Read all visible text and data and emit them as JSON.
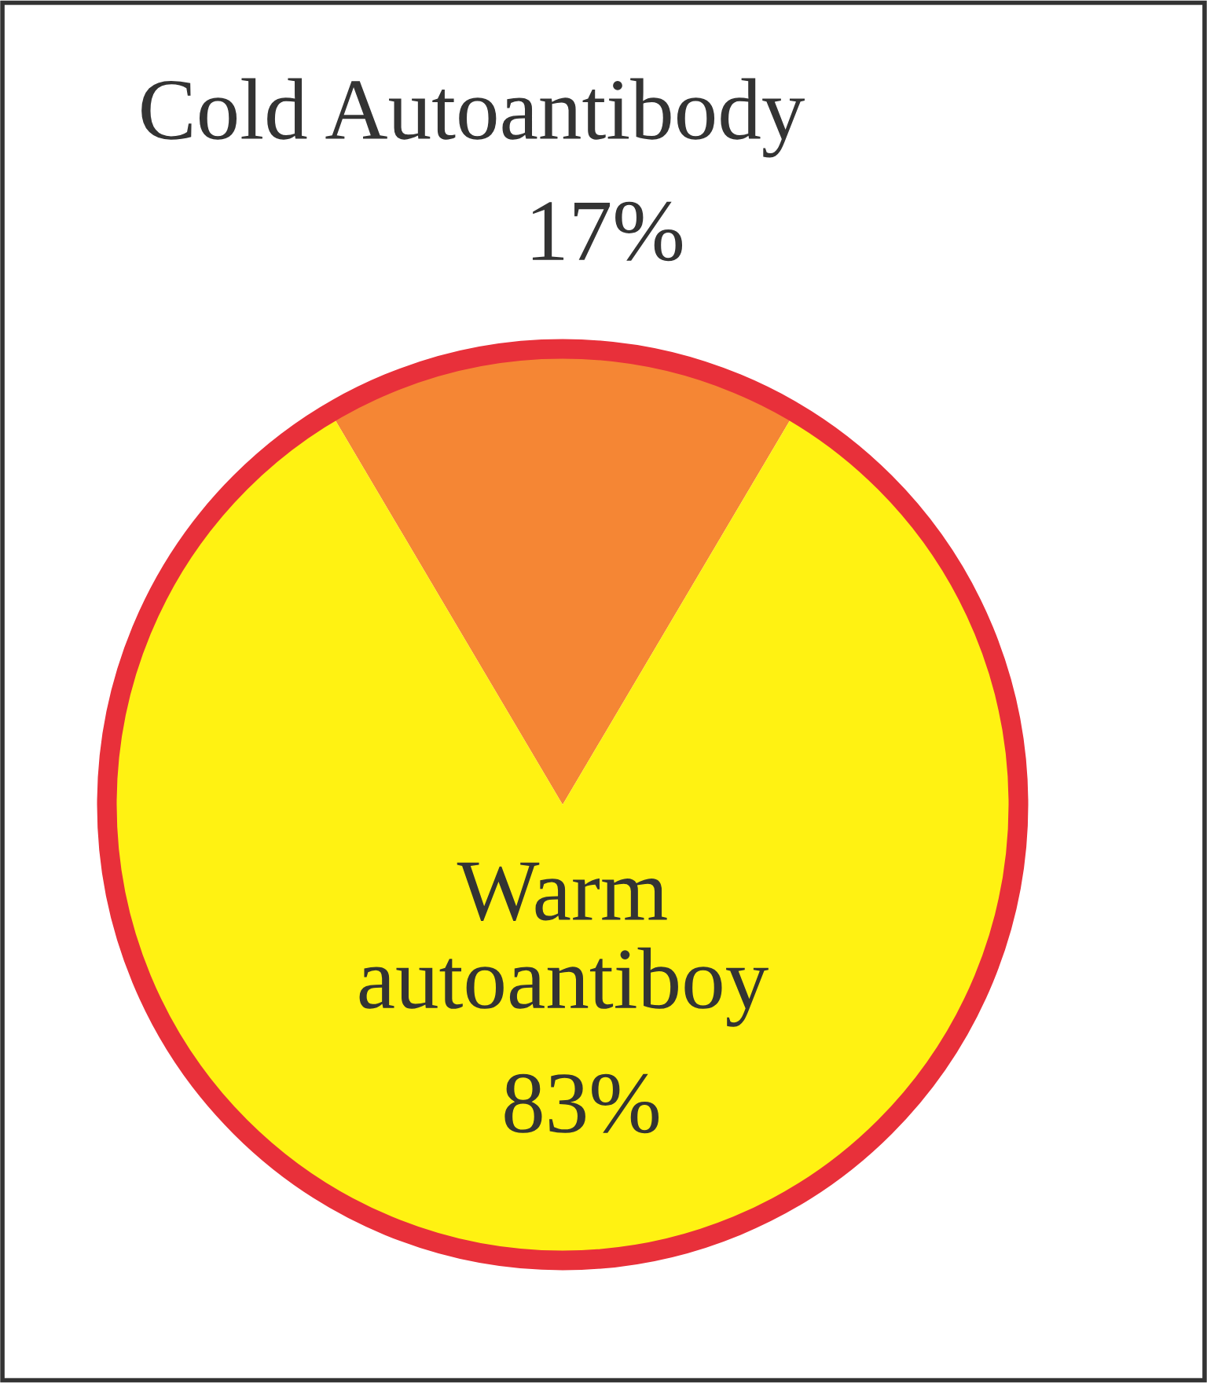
{
  "chart_data": {
    "type": "pie",
    "categories": [
      "Cold Autoantibody",
      "Warm autoantiboy"
    ],
    "values": [
      17,
      83
    ],
    "colors": [
      "#f58634",
      "#fff212"
    ],
    "value_labels": [
      "17%",
      "83%"
    ]
  }
}
